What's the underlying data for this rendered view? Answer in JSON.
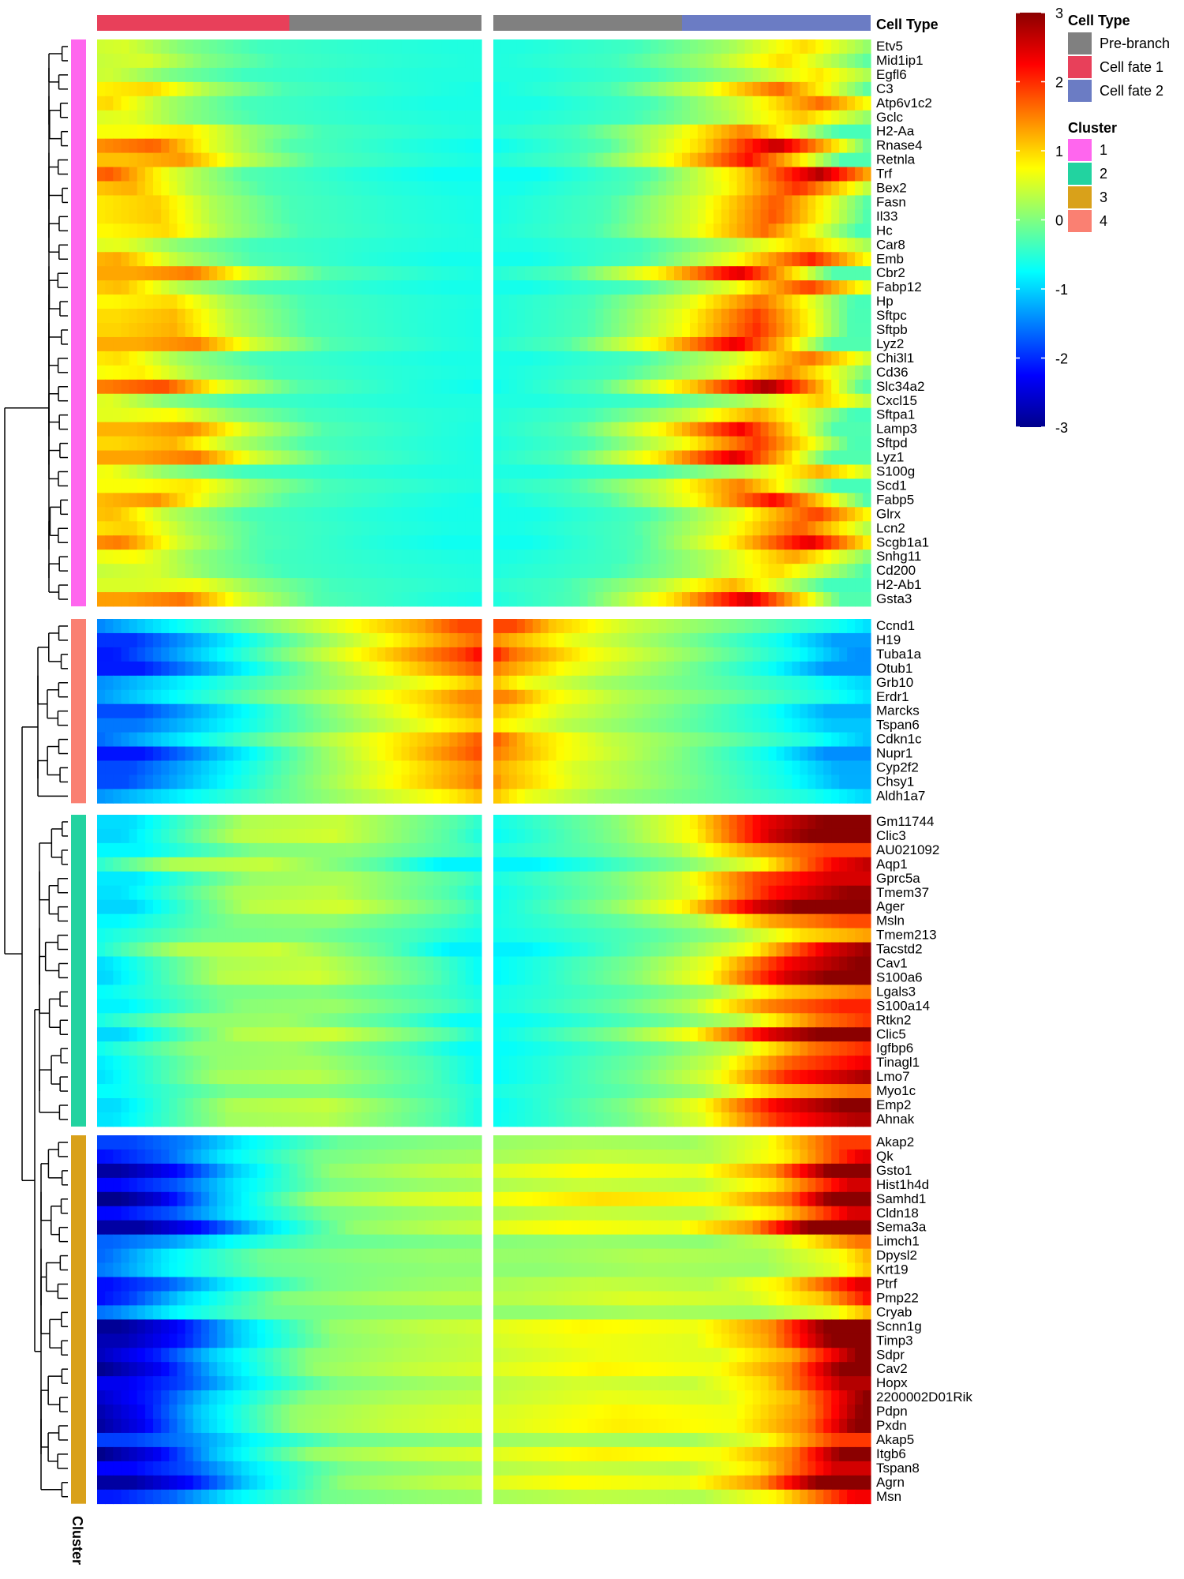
{
  "chart_data": {
    "type": "heatmap",
    "annotation": {
      "top_title": "Cell Type",
      "side_title": "Cluster",
      "left_panel_bar": [
        "Cell fate 1",
        "Pre-branch"
      ],
      "right_panel_bar": [
        "Pre-branch",
        "Cell fate 2"
      ]
    },
    "color_scale": {
      "ticks": [
        3,
        2,
        1,
        0,
        -1,
        -2,
        -3
      ],
      "colors": [
        "#00008b",
        "#0000ff",
        "#0080ff",
        "#00ffff",
        "#80ff80",
        "#ffff00",
        "#ff8000",
        "#ff0000",
        "#8b0000"
      ],
      "range": [
        -3,
        3
      ]
    },
    "legend": {
      "cell_type": {
        "title": "Cell Type",
        "items": [
          {
            "label": "Pre-branch",
            "color": "#808080"
          },
          {
            "label": "Cell fate 1",
            "color": "#e8405a"
          },
          {
            "label": "Cell fate 2",
            "color": "#6b7cc4"
          }
        ]
      },
      "cluster": {
        "title": "Cluster",
        "items": [
          {
            "label": "1",
            "color": "#ff66ee"
          },
          {
            "label": "2",
            "color": "#22d3a0"
          },
          {
            "label": "3",
            "color": "#d9a11a"
          },
          {
            "label": "4",
            "color": "#fa8072"
          }
        ]
      }
    },
    "clusters": [
      {
        "id": "1",
        "color": "#ff66ee",
        "genes": [
          "Etv5",
          "Mid1ip1",
          "Egfl6",
          "C3",
          "Atp6v1c2",
          "Gclc",
          "H2-Aa",
          "Rnase4",
          "Retnla",
          "Trf",
          "Bex2",
          "Fasn",
          "Il33",
          "Hc",
          "Car8",
          "Emb",
          "Cbr2",
          "Fabp12",
          "Hp",
          "Sftpc",
          "Sftpb",
          "Lyz2",
          "Chi3l1",
          "Cd36",
          "Slc34a2",
          "Cxcl15",
          "Sftpa1",
          "Lamp3",
          "Sftpd",
          "Lyz1",
          "S100g",
          "Scd1",
          "Fabp5",
          "Glrx",
          "Lcn2",
          "Scgb1a1",
          "Snhg11",
          "Cd200",
          "H2-Ab1",
          "Gsta3"
        ]
      },
      {
        "id": "4",
        "color": "#fa8072",
        "genes": [
          "Ccnd1",
          "H19",
          "Tuba1a",
          "Otub1",
          "Grb10",
          "Erdr1",
          "Marcks",
          "Tspan6",
          "Cdkn1c",
          "Nupr1",
          "Cyp2f2",
          "Chsy1",
          "Aldh1a7"
        ]
      },
      {
        "id": "2",
        "color": "#22d3a0",
        "genes": [
          "Gm11744",
          "Clic3",
          "AU021092",
          "Aqp1",
          "Gprc5a",
          "Tmem37",
          "Ager",
          "Msln",
          "Tmem213",
          "Tacstd2",
          "Cav1",
          "S100a6",
          "Lgals3",
          "S100a14",
          "Rtkn2",
          "Clic5",
          "Igfbp6",
          "Tinagl1",
          "Lmo7",
          "Myo1c",
          "Emp2",
          "Ahnak"
        ]
      },
      {
        "id": "3",
        "color": "#d9a11a",
        "genes": [
          "Akap2",
          "Qk",
          "Gsto1",
          "Hist1h4d",
          "Samhd1",
          "Cldn18",
          "Sema3a",
          "Limch1",
          "Dpysl2",
          "Krt19",
          "Ptrf",
          "Pmp22",
          "Cryab",
          "Scnn1g",
          "Timp3",
          "Sdpr",
          "Cav2",
          "Hopx",
          "2200002D01Rik",
          "Pdpn",
          "Pxdn",
          "Akap5",
          "Itgb6",
          "Tspan8",
          "Agrn",
          "Msn"
        ]
      }
    ],
    "patterns": {
      "note_columns": "Each row is approximated by anchor values [position 0-1, z-score] for the left panel (Cell fate 1 -> Pre-branch) and right panel (Pre-branch -> Cell fate 2).",
      "cluster1": {
        "left": [
          [
            0,
            0.9
          ],
          [
            0.15,
            1.1
          ],
          [
            0.3,
            0.3
          ],
          [
            0.5,
            -0.3
          ],
          [
            0.8,
            -0.5
          ],
          [
            1,
            -0.6
          ]
        ],
        "right": [
          [
            0,
            -0.6
          ],
          [
            0.3,
            -0.3
          ],
          [
            0.55,
            0.6
          ],
          [
            0.75,
            1.8
          ],
          [
            0.9,
            0.6
          ],
          [
            1,
            -0.3
          ]
        ]
      },
      "cluster4": {
        "left": [
          [
            0,
            -1.6
          ],
          [
            0.2,
            -0.9
          ],
          [
            0.45,
            -0.1
          ],
          [
            0.7,
            0.6
          ],
          [
            0.9,
            1.2
          ],
          [
            1,
            1.7
          ]
        ],
        "right": [
          [
            0,
            1.7
          ],
          [
            0.1,
            1.0
          ],
          [
            0.3,
            0.4
          ],
          [
            0.6,
            -0.1
          ],
          [
            0.85,
            -0.6
          ],
          [
            1,
            -1.1
          ]
        ]
      },
      "cluster2": {
        "left": [
          [
            0,
            -0.8
          ],
          [
            0.1,
            -0.5
          ],
          [
            0.3,
            0.1
          ],
          [
            0.55,
            0.2
          ],
          [
            0.85,
            -0.3
          ],
          [
            1,
            -0.7
          ]
        ],
        "right": [
          [
            0,
            -0.7
          ],
          [
            0.15,
            -0.5
          ],
          [
            0.4,
            -0.1
          ],
          [
            0.6,
            0.4
          ],
          [
            0.8,
            1.6
          ],
          [
            1,
            2.2
          ]
        ]
      },
      "cluster3": {
        "left": [
          [
            0,
            -2.3
          ],
          [
            0.15,
            -1.8
          ],
          [
            0.3,
            -0.9
          ],
          [
            0.55,
            0.0
          ],
          [
            0.8,
            0.2
          ],
          [
            1,
            0.3
          ]
        ],
        "right": [
          [
            0,
            0.3
          ],
          [
            0.3,
            0.5
          ],
          [
            0.6,
            0.4
          ],
          [
            0.8,
            1.0
          ],
          [
            0.92,
            2.0
          ],
          [
            1,
            2.7
          ]
        ]
      }
    }
  }
}
